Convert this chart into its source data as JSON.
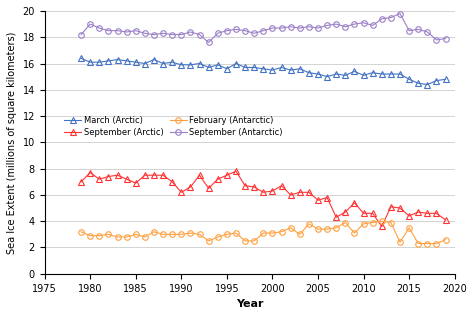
{
  "xlabel": "Year",
  "ylabel": "Sea Ice Extent (millions of square kilometers)",
  "xlim": [
    1975,
    2020
  ],
  "ylim": [
    0,
    20
  ],
  "yticks": [
    0,
    2,
    4,
    6,
    8,
    10,
    12,
    14,
    16,
    18,
    20
  ],
  "xticks": [
    1975,
    1980,
    1985,
    1990,
    1995,
    2000,
    2005,
    2010,
    2015,
    2020
  ],
  "march_arctic": {
    "years": [
      1979,
      1980,
      1981,
      1982,
      1983,
      1984,
      1985,
      1986,
      1987,
      1988,
      1989,
      1990,
      1991,
      1992,
      1993,
      1994,
      1995,
      1996,
      1997,
      1998,
      1999,
      2000,
      2001,
      2002,
      2003,
      2004,
      2005,
      2006,
      2007,
      2008,
      2009,
      2010,
      2011,
      2012,
      2013,
      2014,
      2015,
      2016,
      2017,
      2018,
      2019
    ],
    "values": [
      16.4,
      16.1,
      16.1,
      16.2,
      16.3,
      16.2,
      16.1,
      16.0,
      16.3,
      16.0,
      16.1,
      15.9,
      15.9,
      16.0,
      15.7,
      15.9,
      15.6,
      16.0,
      15.7,
      15.7,
      15.6,
      15.5,
      15.7,
      15.5,
      15.6,
      15.3,
      15.2,
      15.0,
      15.2,
      15.1,
      15.4,
      15.1,
      15.3,
      15.2,
      15.2,
      15.2,
      14.8,
      14.5,
      14.4,
      14.7,
      14.8
    ],
    "color": "#4472C4",
    "marker": "^",
    "label": "March (Arctic)"
  },
  "september_arctic": {
    "years": [
      1979,
      1980,
      1981,
      1982,
      1983,
      1984,
      1985,
      1986,
      1987,
      1988,
      1989,
      1990,
      1991,
      1992,
      1993,
      1994,
      1995,
      1996,
      1997,
      1998,
      1999,
      2000,
      2001,
      2002,
      2003,
      2004,
      2005,
      2006,
      2007,
      2008,
      2009,
      2010,
      2011,
      2012,
      2013,
      2014,
      2015,
      2016,
      2017,
      2018,
      2019
    ],
    "values": [
      7.0,
      7.7,
      7.2,
      7.4,
      7.5,
      7.2,
      6.9,
      7.5,
      7.5,
      7.5,
      7.0,
      6.2,
      6.6,
      7.5,
      6.5,
      7.2,
      7.5,
      7.8,
      6.7,
      6.6,
      6.2,
      6.3,
      6.7,
      6.0,
      6.2,
      6.2,
      5.6,
      5.8,
      4.3,
      4.7,
      5.4,
      4.6,
      4.6,
      3.6,
      5.1,
      5.0,
      4.4,
      4.7,
      4.6,
      4.6,
      4.1
    ],
    "color": "#FF3333",
    "marker": "^",
    "label": "September (Arctic)"
  },
  "february_antarctic": {
    "years": [
      1979,
      1980,
      1981,
      1982,
      1983,
      1984,
      1985,
      1986,
      1987,
      1988,
      1989,
      1990,
      1991,
      1992,
      1993,
      1994,
      1995,
      1996,
      1997,
      1998,
      1999,
      2000,
      2001,
      2002,
      2003,
      2004,
      2005,
      2006,
      2007,
      2008,
      2009,
      2010,
      2011,
      2012,
      2013,
      2014,
      2015,
      2016,
      2017,
      2018,
      2019
    ],
    "values": [
      3.2,
      2.9,
      2.9,
      3.0,
      2.8,
      2.8,
      3.0,
      2.8,
      3.2,
      3.0,
      3.0,
      3.0,
      3.1,
      3.0,
      2.5,
      2.8,
      3.0,
      3.1,
      2.5,
      2.5,
      3.1,
      3.1,
      3.2,
      3.5,
      3.0,
      3.8,
      3.4,
      3.4,
      3.5,
      3.9,
      3.1,
      3.8,
      3.9,
      4.0,
      3.9,
      2.4,
      3.5,
      2.3,
      2.3,
      2.3,
      2.6
    ],
    "color": "#FFA040",
    "marker": "o",
    "label": "February (Antarctic)"
  },
  "september_antarctic": {
    "years": [
      1979,
      1980,
      1981,
      1982,
      1983,
      1984,
      1985,
      1986,
      1987,
      1988,
      1989,
      1990,
      1991,
      1992,
      1993,
      1994,
      1995,
      1996,
      1997,
      1998,
      1999,
      2000,
      2001,
      2002,
      2003,
      2004,
      2005,
      2006,
      2007,
      2008,
      2009,
      2010,
      2011,
      2012,
      2013,
      2014,
      2015,
      2016,
      2017,
      2018,
      2019
    ],
    "values": [
      18.2,
      19.0,
      18.7,
      18.5,
      18.5,
      18.4,
      18.5,
      18.3,
      18.2,
      18.3,
      18.2,
      18.2,
      18.4,
      18.2,
      17.6,
      18.3,
      18.5,
      18.6,
      18.5,
      18.3,
      18.5,
      18.7,
      18.7,
      18.8,
      18.7,
      18.8,
      18.7,
      18.9,
      19.0,
      18.8,
      19.0,
      19.1,
      18.9,
      19.4,
      19.5,
      19.8,
      18.5,
      18.6,
      18.4,
      17.8,
      17.9
    ],
    "color": "#9B7FC7",
    "marker": "o",
    "label": "September (Antarctic)"
  },
  "series_order": [
    "march_arctic",
    "september_arctic",
    "february_antarctic",
    "september_antarctic"
  ]
}
